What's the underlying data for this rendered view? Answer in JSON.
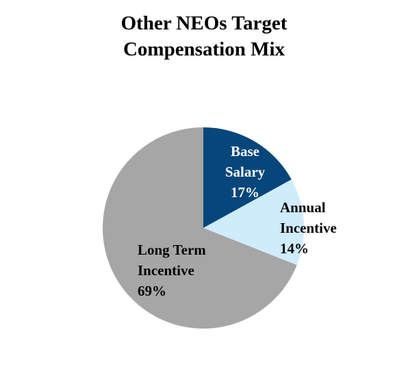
{
  "chart_data": {
    "type": "pie",
    "title_lines": [
      "Other NEOs Target",
      "Compensation Mix"
    ],
    "slices": [
      {
        "label_lines": [
          "Base",
          "Salary",
          "17%"
        ],
        "value": 17,
        "color": "#07467a",
        "label_color": "#ffffff"
      },
      {
        "label_lines": [
          "Annual",
          "Incentive",
          "14%"
        ],
        "value": 14,
        "color": "#cfecfb",
        "label_color": "#000000"
      },
      {
        "label_lines": [
          "Long Term",
          "Incentive",
          "69%"
        ],
        "value": 69,
        "color": "#a6a6a6",
        "label_color": "#000000"
      }
    ],
    "start_angle": "12 o'clock",
    "direction": "clockwise",
    "legend": "none"
  }
}
